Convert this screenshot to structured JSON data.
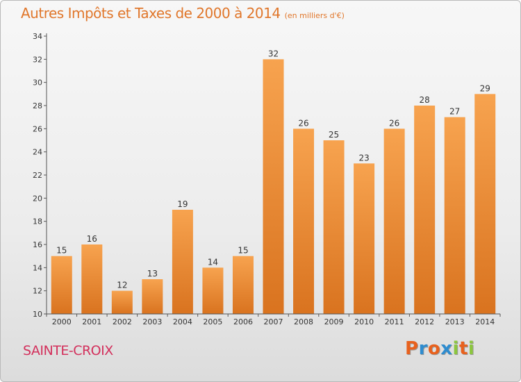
{
  "header": {
    "title": "Autres Impôts et Taxes de 2000 à 2014",
    "unit_note": "(en milliers d'€)"
  },
  "footer": {
    "commune": "SAINTE-CROIX",
    "logo": {
      "letters": [
        "P",
        "r",
        "o",
        "x",
        "i",
        "t",
        "i"
      ],
      "colors": [
        "#e8611d",
        "#2e8ccf",
        "#e8611d",
        "#2e8ccf",
        "#8cc63f",
        "#e8611d",
        "#8cc63f"
      ]
    }
  },
  "colors": {
    "bar_light": "#f7a34f",
    "bar_dark": "#d9731f",
    "axis": "#555555",
    "label": "#333333"
  },
  "chart_data": {
    "type": "bar",
    "categories": [
      "2000",
      "2001",
      "2002",
      "2003",
      "2004",
      "2005",
      "2006",
      "2007",
      "2008",
      "2009",
      "2010",
      "2011",
      "2012",
      "2013",
      "2014"
    ],
    "values": [
      15,
      16,
      12,
      13,
      19,
      14,
      15,
      32,
      26,
      25,
      23,
      26,
      28,
      27,
      29
    ],
    "ylim": [
      10,
      34
    ],
    "yticks": [
      10,
      12,
      14,
      16,
      18,
      20,
      22,
      24,
      26,
      28,
      30,
      32,
      34
    ],
    "grid": false,
    "data_labels": true
  }
}
